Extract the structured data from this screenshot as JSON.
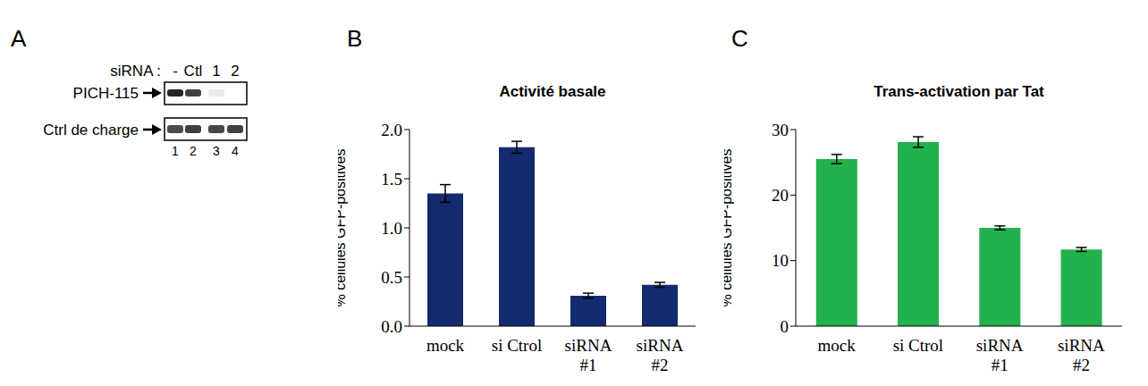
{
  "panel_labels": [
    "A",
    "B",
    "C"
  ],
  "blot": {
    "header": "siRNA :",
    "lanes": [
      "-",
      "Ctl",
      "1",
      "2"
    ],
    "rows": [
      "PICH-115",
      "Ctrl de charge"
    ],
    "lane_numbers": [
      1,
      2,
      3,
      4
    ]
  },
  "chart_data": [
    {
      "type": "bar",
      "title": "Activité basale",
      "ylabel": "% cellules GFP-positives",
      "categories": [
        "mock",
        "si Ctrol",
        "siRNA #1",
        "siRNA #2"
      ],
      "values": [
        1.35,
        1.82,
        0.31,
        0.42
      ],
      "error": [
        0.09,
        0.06,
        0.025,
        0.025
      ],
      "color": "#142a6e",
      "ylim": [
        0,
        2
      ],
      "yticks": [
        {
          "value": 0,
          "label": "0.0"
        },
        {
          "value": 0.5,
          "label": "0.5"
        },
        {
          "value": 1,
          "label": "1.0"
        },
        {
          "value": 1.5,
          "label": "1.5"
        },
        {
          "value": 2,
          "label": "2.0"
        }
      ]
    },
    {
      "type": "bar",
      "title": "Trans-activation par Tat",
      "ylabel": "% cellules GFP-positives",
      "categories": [
        "mock",
        "si Ctrol",
        "siRNA #1",
        "siRNA #2"
      ],
      "values": [
        25.5,
        28.1,
        15.0,
        11.7
      ],
      "error": [
        0.7,
        0.8,
        0.3,
        0.3
      ],
      "color": "#22b14c",
      "ylim": [
        0,
        30
      ],
      "yticks": [
        0,
        10,
        20,
        30
      ]
    }
  ]
}
